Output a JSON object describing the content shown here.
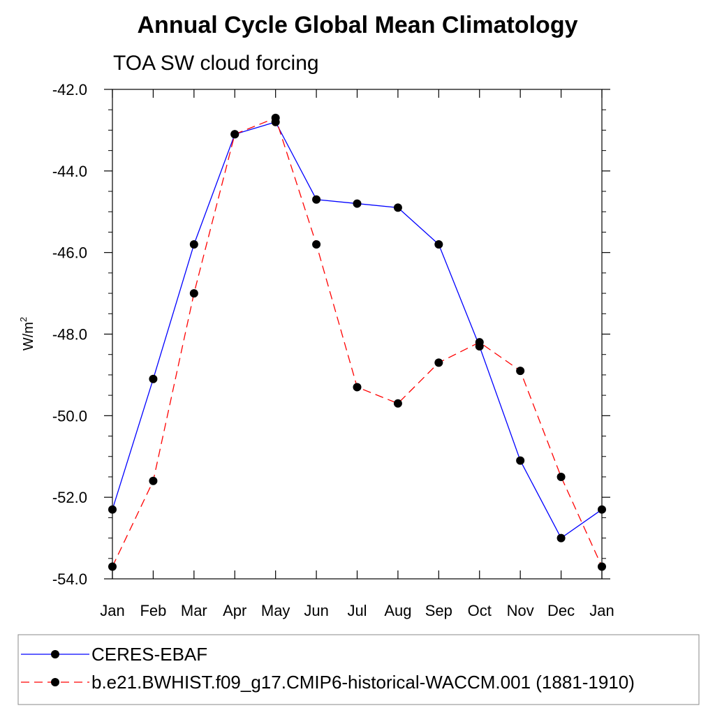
{
  "chart_data": {
    "type": "line",
    "title": "Annual Cycle Global Mean Climatology",
    "subtitle": "TOA SW cloud forcing",
    "ylabel": "W/m",
    "ylabel_sup": "2",
    "xlabel": "",
    "categories": [
      "Jan",
      "Feb",
      "Mar",
      "Apr",
      "May",
      "Jun",
      "Jul",
      "Aug",
      "Sep",
      "Oct",
      "Nov",
      "Dec",
      "Jan"
    ],
    "ylim": [
      -54.0,
      -42.0
    ],
    "yticks": [
      "-42.0",
      "-44.0",
      "-46.0",
      "-48.0",
      "-50.0",
      "-52.0",
      "-54.0"
    ],
    "ytick_values": [
      -42.0,
      -44.0,
      -46.0,
      -48.0,
      -50.0,
      -52.0,
      -54.0
    ],
    "legend_position": "bottom",
    "grid": false,
    "series": [
      {
        "name": "CERES-EBAF",
        "color": "#0000ff",
        "dash": "solid",
        "values": [
          -52.3,
          -49.1,
          -45.8,
          -43.1,
          -42.8,
          -44.7,
          -44.8,
          -44.9,
          -45.8,
          -48.3,
          -51.1,
          -53.0,
          -52.3
        ]
      },
      {
        "name": "b.e21.BWHIST.f09_g17.CMIP6-historical-WACCM.001 (1881-1910)",
        "color": "#ff0000",
        "dash": "dashed",
        "values": [
          -53.7,
          -51.6,
          -47.0,
          -43.1,
          -42.7,
          -45.8,
          -49.3,
          -49.7,
          -48.7,
          -48.2,
          -48.9,
          -51.5,
          -53.7
        ]
      }
    ]
  }
}
